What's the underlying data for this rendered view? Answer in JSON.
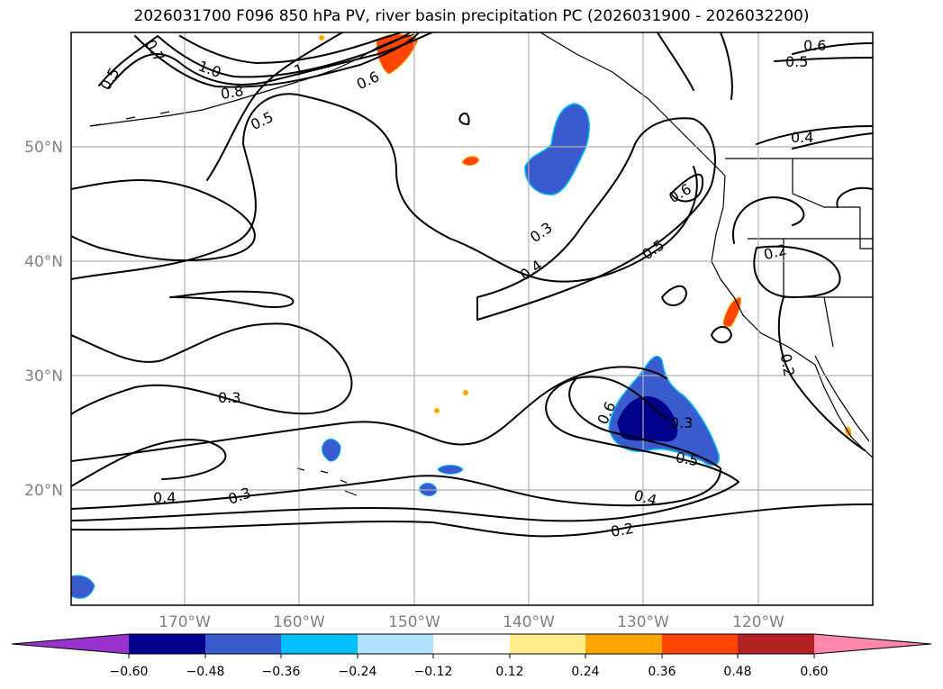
{
  "title": "2026031700 F096 850 hPa PV, river basin precipitation PC (2026031900 - 2026032200)",
  "lat_labels": [
    "50°N",
    "40°N",
    "30°N",
    "20°N"
  ],
  "lon_labels": [
    "170°W",
    "160°W",
    "150°W",
    "140°W",
    "130°W",
    "120°W"
  ],
  "colorbar": {
    "colors": [
      "#9932cc",
      "#00008b",
      "#3a5bcd",
      "#00bfff",
      "#b0e2ff",
      "#ffffff",
      "#ffec8b",
      "#ffa500",
      "#ff4500",
      "#b22222",
      "#ff88aa"
    ],
    "tick_labels": [
      "−0.60",
      "−0.48",
      "−0.36",
      "−0.24",
      "−0.12",
      "0.12",
      "0.24",
      "0.36",
      "0.48",
      "0.60"
    ]
  },
  "contour_labels": [
    "0.5",
    "0.7",
    "1.0",
    "0.8",
    "0.5",
    "1",
    "0.6",
    "0.6",
    "0.5",
    "0.4",
    "0.6",
    "0.3",
    "0.4",
    "0.5",
    "0.2",
    "0.3",
    "0.4",
    "0.3",
    "0.6",
    "0.3",
    "0.5",
    "0.4",
    "0.2",
    "0.2"
  ]
}
